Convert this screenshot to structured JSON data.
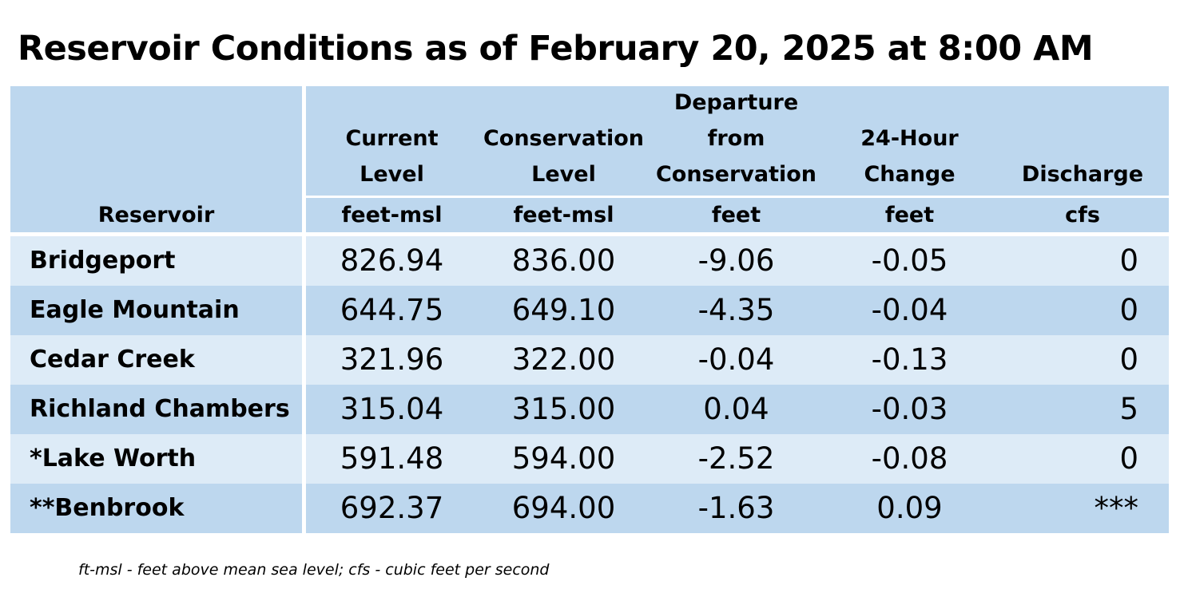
{
  "title": "Reservoir Conditions as of February 20, 2025 at 8:00 AM",
  "header": {
    "reservoir": "Reservoir",
    "columns": [
      {
        "lines": [
          "Current",
          "Level"
        ],
        "unit": "feet-msl"
      },
      {
        "lines": [
          "Conservation",
          "Level"
        ],
        "unit": "feet-msl"
      },
      {
        "lines": [
          "Departure",
          "from",
          "Conservation"
        ],
        "unit": "feet"
      },
      {
        "lines": [
          "24-Hour",
          "Change"
        ],
        "unit": "feet"
      },
      {
        "lines": [
          "Discharge"
        ],
        "unit": "cfs"
      }
    ]
  },
  "rows": [
    {
      "name": "Bridgeport",
      "current": "826.94",
      "conservation": "836.00",
      "departure": "-9.06",
      "change": "-0.05",
      "discharge": "0"
    },
    {
      "name": "Eagle Mountain",
      "current": "644.75",
      "conservation": "649.10",
      "departure": "-4.35",
      "change": "-0.04",
      "discharge": "0"
    },
    {
      "name": "Cedar Creek",
      "current": "321.96",
      "conservation": "322.00",
      "departure": "-0.04",
      "change": "-0.13",
      "discharge": "0"
    },
    {
      "name": "Richland Chambers",
      "current": "315.04",
      "conservation": "315.00",
      "departure": "0.04",
      "change": "-0.03",
      "discharge": "5"
    },
    {
      "name": "*Lake Worth",
      "current": "591.48",
      "conservation": "594.00",
      "departure": "-2.52",
      "change": "-0.08",
      "discharge": "0"
    },
    {
      "name": "**Benbrook",
      "current": "692.37",
      "conservation": "694.00",
      "departure": "-1.63",
      "change": "0.09",
      "discharge": "***"
    }
  ],
  "footnote": "ft-msl - feet above mean sea level; cfs - cubic feet per second",
  "colors": {
    "header_bg": "#bdd7ee",
    "row_light": "#ddebf7",
    "row_dark": "#bdd7ee"
  }
}
